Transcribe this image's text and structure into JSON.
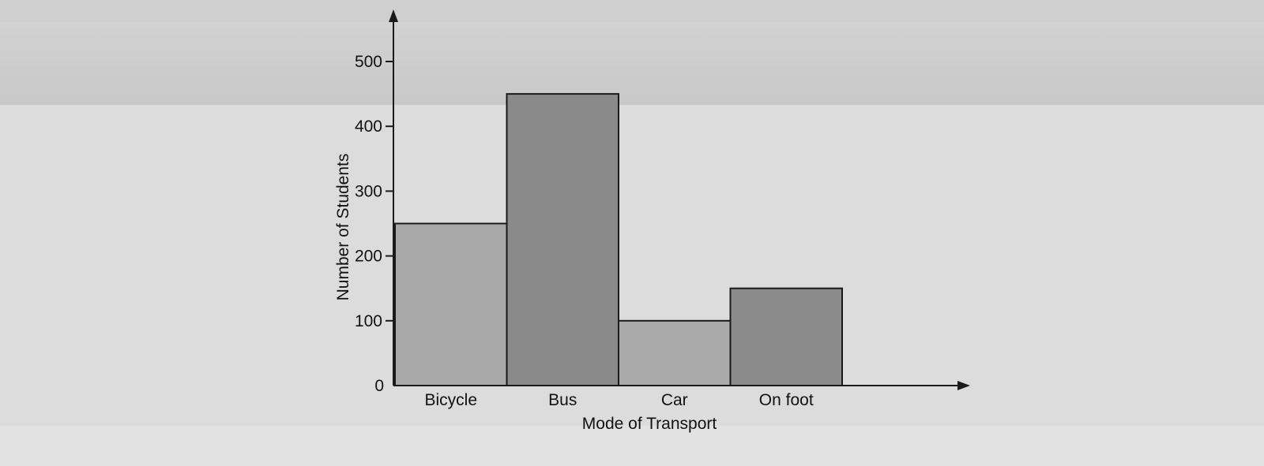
{
  "chart_data": {
    "type": "bar",
    "title": "",
    "xlabel": "Mode of Transport",
    "ylabel": "Number of Students",
    "categories": [
      "Bicycle",
      "Bus",
      "Car",
      "On foot"
    ],
    "values": [
      250,
      450,
      100,
      150
    ],
    "ylim": [
      0,
      500
    ],
    "yticks": [
      0,
      100,
      200,
      300,
      400,
      500
    ],
    "grid": false,
    "legend": "none",
    "colors": {
      "bars": [
        "#a8a8a8",
        "#8a8a8a",
        "#ababab",
        "#8c8c8c"
      ],
      "edge": "#1a1a1a",
      "axis": "#1a1a1a"
    }
  }
}
